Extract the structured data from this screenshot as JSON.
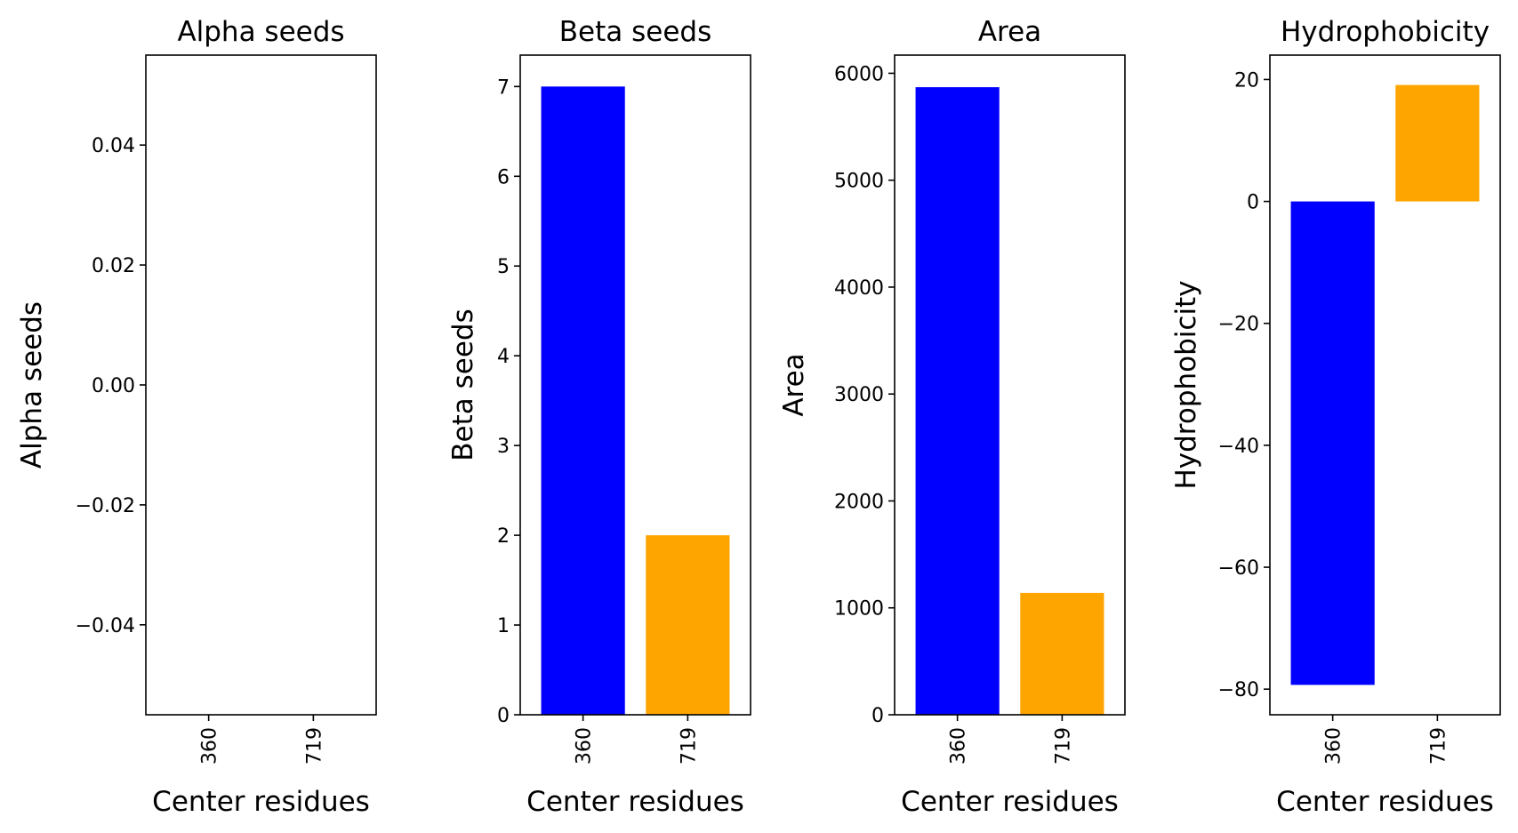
{
  "chart_data": [
    {
      "type": "bar",
      "title": "Alpha seeds",
      "xlabel": "Center residues",
      "ylabel": "Alpha seeds",
      "categories": [
        "360",
        "719"
      ],
      "values": [
        0,
        0
      ],
      "colors": [
        "#0000ff",
        "#ffa500"
      ],
      "ylim": [
        -0.055,
        0.055
      ],
      "yticks": [
        -0.04,
        -0.02,
        0.0,
        0.02,
        0.04
      ],
      "ytick_labels": [
        "−0.04",
        "−0.02",
        "0.00",
        "0.02",
        "0.04"
      ]
    },
    {
      "type": "bar",
      "title": "Beta seeds",
      "xlabel": "Center residues",
      "ylabel": "Beta seeds",
      "categories": [
        "360",
        "719"
      ],
      "values": [
        7,
        2
      ],
      "colors": [
        "#0000ff",
        "#ffa500"
      ],
      "ylim": [
        0,
        7.35
      ],
      "yticks": [
        0,
        1,
        2,
        3,
        4,
        5,
        6,
        7
      ],
      "ytick_labels": [
        "0",
        "1",
        "2",
        "3",
        "4",
        "5",
        "6",
        "7"
      ]
    },
    {
      "type": "bar",
      "title": "Area",
      "xlabel": "Center residues",
      "ylabel": "Area",
      "categories": [
        "360",
        "719"
      ],
      "values": [
        5870,
        1140
      ],
      "colors": [
        "#0000ff",
        "#ffa500"
      ],
      "ylim": [
        0,
        6170
      ],
      "yticks": [
        0,
        1000,
        2000,
        3000,
        4000,
        5000,
        6000
      ],
      "ytick_labels": [
        "0",
        "1000",
        "2000",
        "3000",
        "4000",
        "5000",
        "6000"
      ]
    },
    {
      "type": "bar",
      "title": "Hydrophobicity",
      "xlabel": "Center residues",
      "ylabel": "Hydrophobicity",
      "categories": [
        "360",
        "719"
      ],
      "values": [
        -79.3,
        19.1
      ],
      "colors": [
        "#0000ff",
        "#ffa500"
      ],
      "ylim": [
        -84.2,
        24.0
      ],
      "yticks": [
        -80,
        -60,
        -40,
        -20,
        0,
        20
      ],
      "ytick_labels": [
        "−80",
        "−60",
        "−40",
        "−20",
        "0",
        "20"
      ]
    }
  ]
}
